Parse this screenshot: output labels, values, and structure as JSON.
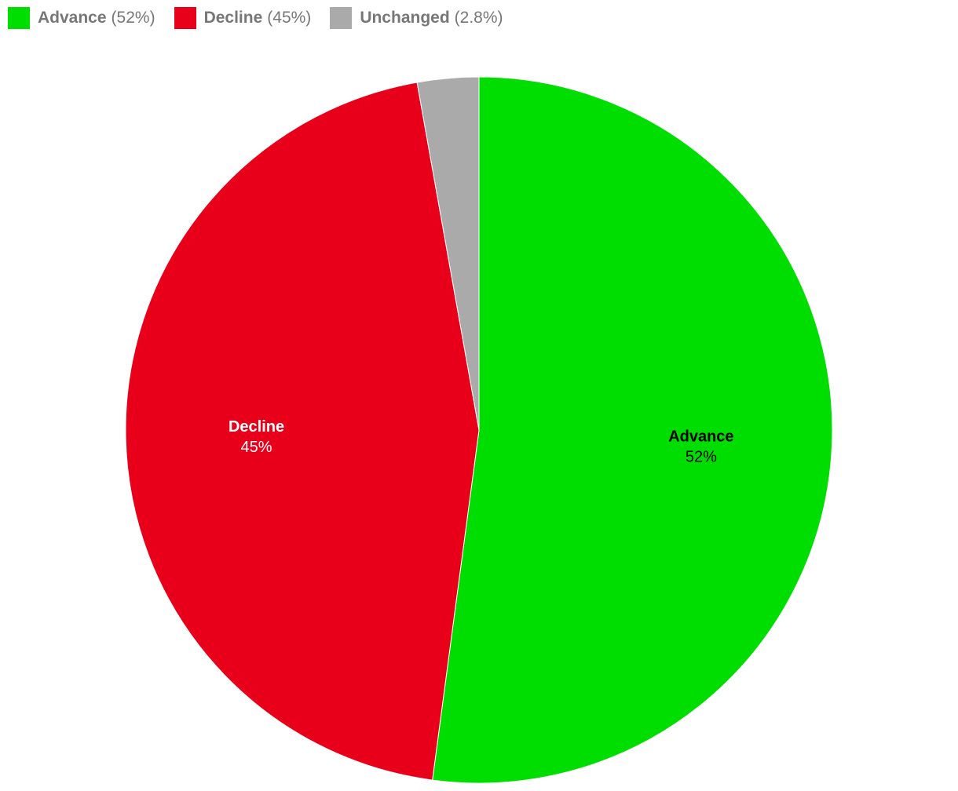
{
  "chart_data": {
    "type": "pie",
    "slices": [
      {
        "name": "Advance",
        "value": 52,
        "label": "52%",
        "legend_pct": "(52%)",
        "color": "#00dd00",
        "label_color": "#000000"
      },
      {
        "name": "Decline",
        "value": 45,
        "label": "45%",
        "legend_pct": "(45%)",
        "color": "#e8001a",
        "label_color": "#ffffff"
      },
      {
        "name": "Unchanged",
        "value": 2.8,
        "label": "2.8%",
        "legend_pct": "(2.8%)",
        "color": "#aaaaaa",
        "label_color": "#000000"
      }
    ],
    "start_angle": "top",
    "direction": "clockwise",
    "legend_placement": "top-left"
  }
}
